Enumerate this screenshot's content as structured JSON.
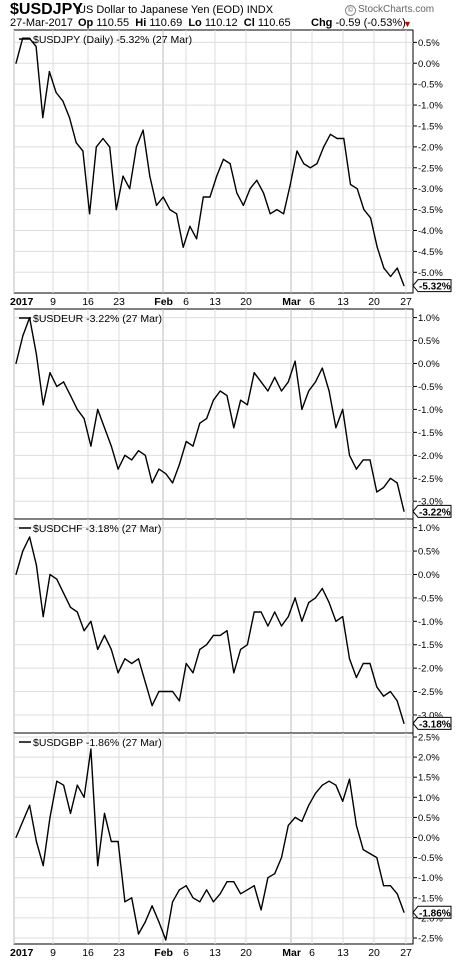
{
  "header": {
    "symbol": "$USDJPY",
    "description": "US Dollar to Japanese Yen (EOD)  INDX",
    "watermark": "StockCharts.com",
    "date": "27-Mar-2017",
    "op_label": "Op",
    "op": "110.55",
    "hi_label": "Hi",
    "hi": "110.69",
    "lo_label": "Lo",
    "lo": "110.12",
    "cl_label": "Cl",
    "cl": "110.65",
    "chg_label": "Chg",
    "chg": "-0.59 (-0.53%)",
    "chg_icon": "down-triangle-icon",
    "chg_color": "#cc0000"
  },
  "x_axis": {
    "labels": [
      "2017",
      "9",
      "16",
      "23",
      "Feb",
      "6",
      "13",
      "20",
      "Mar",
      "6",
      "13",
      "20",
      "27"
    ]
  },
  "chart_data": [
    {
      "type": "line",
      "legend": "$USDJPY (Daily) -5.32% (27 Mar)",
      "last_label": "-5.32%",
      "ylim": [
        -5.4,
        0.7
      ],
      "y_ticks": [
        "0.5%",
        "0.0%",
        "-0.5%",
        "-1.0%",
        "-1.5%",
        "-2.0%",
        "-2.5%",
        "-3.0%",
        "-3.5%",
        "-4.0%",
        "-4.5%",
        "-5.0%"
      ],
      "y": [
        0.0,
        0.6,
        0.6,
        0.4,
        -1.3,
        -0.2,
        -0.7,
        -0.9,
        -1.3,
        -1.9,
        -2.1,
        -3.6,
        -2.0,
        -1.8,
        -2.0,
        -3.5,
        -2.7,
        -3.0,
        -2.0,
        -1.6,
        -2.7,
        -3.4,
        -3.2,
        -3.5,
        -3.6,
        -4.4,
        -3.9,
        -4.2,
        -3.2,
        -3.2,
        -2.7,
        -2.3,
        -2.4,
        -3.1,
        -3.4,
        -3.0,
        -2.8,
        -3.1,
        -3.6,
        -3.5,
        -3.6,
        -2.9,
        -2.1,
        -2.4,
        -2.5,
        -2.4,
        -2.0,
        -1.7,
        -1.8,
        -1.8,
        -2.9,
        -3.0,
        -3.5,
        -3.7,
        -4.4,
        -4.9,
        -5.1,
        -4.9,
        -5.32
      ]
    },
    {
      "type": "line",
      "legend": "$USDEUR -3.22% (27 Mar)",
      "last_label": "-3.22%",
      "ylim": [
        -3.3,
        1.1
      ],
      "y_ticks": [
        "1.0%",
        "0.5%",
        "0.0%",
        "-0.5%",
        "-1.0%",
        "-1.5%",
        "-2.0%",
        "-2.5%",
        "-3.0%"
      ],
      "y": [
        0.0,
        0.6,
        1.0,
        0.2,
        -0.9,
        -0.2,
        -0.5,
        -0.4,
        -0.7,
        -1.0,
        -1.2,
        -1.8,
        -1.0,
        -1.4,
        -1.8,
        -2.3,
        -2.0,
        -2.1,
        -1.9,
        -2.0,
        -2.6,
        -2.3,
        -2.4,
        -2.6,
        -2.2,
        -1.7,
        -1.8,
        -1.3,
        -1.2,
        -0.8,
        -0.6,
        -0.7,
        -1.4,
        -0.8,
        -0.9,
        -0.2,
        -0.4,
        -0.6,
        -0.3,
        -0.6,
        -0.4,
        0.05,
        -1.0,
        -0.6,
        -0.4,
        -0.1,
        -0.6,
        -1.4,
        -1.0,
        -2.0,
        -2.3,
        -2.1,
        -2.1,
        -2.8,
        -2.7,
        -2.5,
        -2.6,
        -3.22
      ]
    },
    {
      "type": "line",
      "legend": "$USDCHF -3.18% (27 Mar)",
      "last_label": "-3.18%",
      "ylim": [
        -3.3,
        1.1
      ],
      "y_ticks": [
        "1.0%",
        "0.5%",
        "0.0%",
        "-0.5%",
        "-1.0%",
        "-1.5%",
        "-2.0%",
        "-2.5%",
        "-3.0%"
      ],
      "y": [
        0.0,
        0.5,
        0.8,
        0.2,
        -0.9,
        0.0,
        -0.1,
        -0.4,
        -0.7,
        -0.8,
        -1.2,
        -1.0,
        -1.6,
        -1.3,
        -1.6,
        -2.1,
        -1.8,
        -1.9,
        -1.8,
        -2.3,
        -2.8,
        -2.5,
        -2.5,
        -2.5,
        -2.7,
        -1.9,
        -2.1,
        -1.6,
        -1.5,
        -1.3,
        -1.3,
        -1.2,
        -2.1,
        -1.6,
        -1.5,
        -0.8,
        -0.8,
        -1.1,
        -0.8,
        -1.1,
        -0.9,
        -0.5,
        -1.0,
        -0.6,
        -0.5,
        -0.3,
        -0.6,
        -1.0,
        -0.9,
        -1.8,
        -2.2,
        -1.9,
        -1.9,
        -2.4,
        -2.6,
        -2.5,
        -2.7,
        -3.18
      ]
    },
    {
      "type": "line",
      "legend": "$USDGBP -1.86% (27 Mar)",
      "last_label": "-1.86%",
      "ylim": [
        -2.55,
        2.5
      ],
      "y_ticks": [
        "2.5%",
        "2.0%",
        "1.5%",
        "1.0%",
        "0.5%",
        "0.0%",
        "-0.5%",
        "-1.0%",
        "-1.5%",
        "-2.0%",
        "-2.5%"
      ],
      "y": [
        0.0,
        0.4,
        0.8,
        -0.1,
        -0.7,
        0.5,
        1.4,
        1.3,
        0.6,
        1.3,
        1.0,
        2.2,
        -0.7,
        0.6,
        -0.1,
        -0.1,
        -1.6,
        -1.5,
        -2.4,
        -2.1,
        -1.7,
        -2.1,
        -2.55,
        -1.6,
        -1.3,
        -1.2,
        -1.5,
        -1.6,
        -1.3,
        -1.6,
        -1.4,
        -1.1,
        -1.1,
        -1.4,
        -1.3,
        -1.2,
        -1.8,
        -1.0,
        -0.9,
        -0.5,
        0.3,
        0.5,
        0.4,
        0.8,
        1.1,
        1.3,
        1.4,
        1.3,
        0.9,
        1.45,
        0.3,
        -0.3,
        -0.4,
        -0.5,
        -1.2,
        -1.2,
        -1.4,
        -1.86
      ]
    }
  ]
}
